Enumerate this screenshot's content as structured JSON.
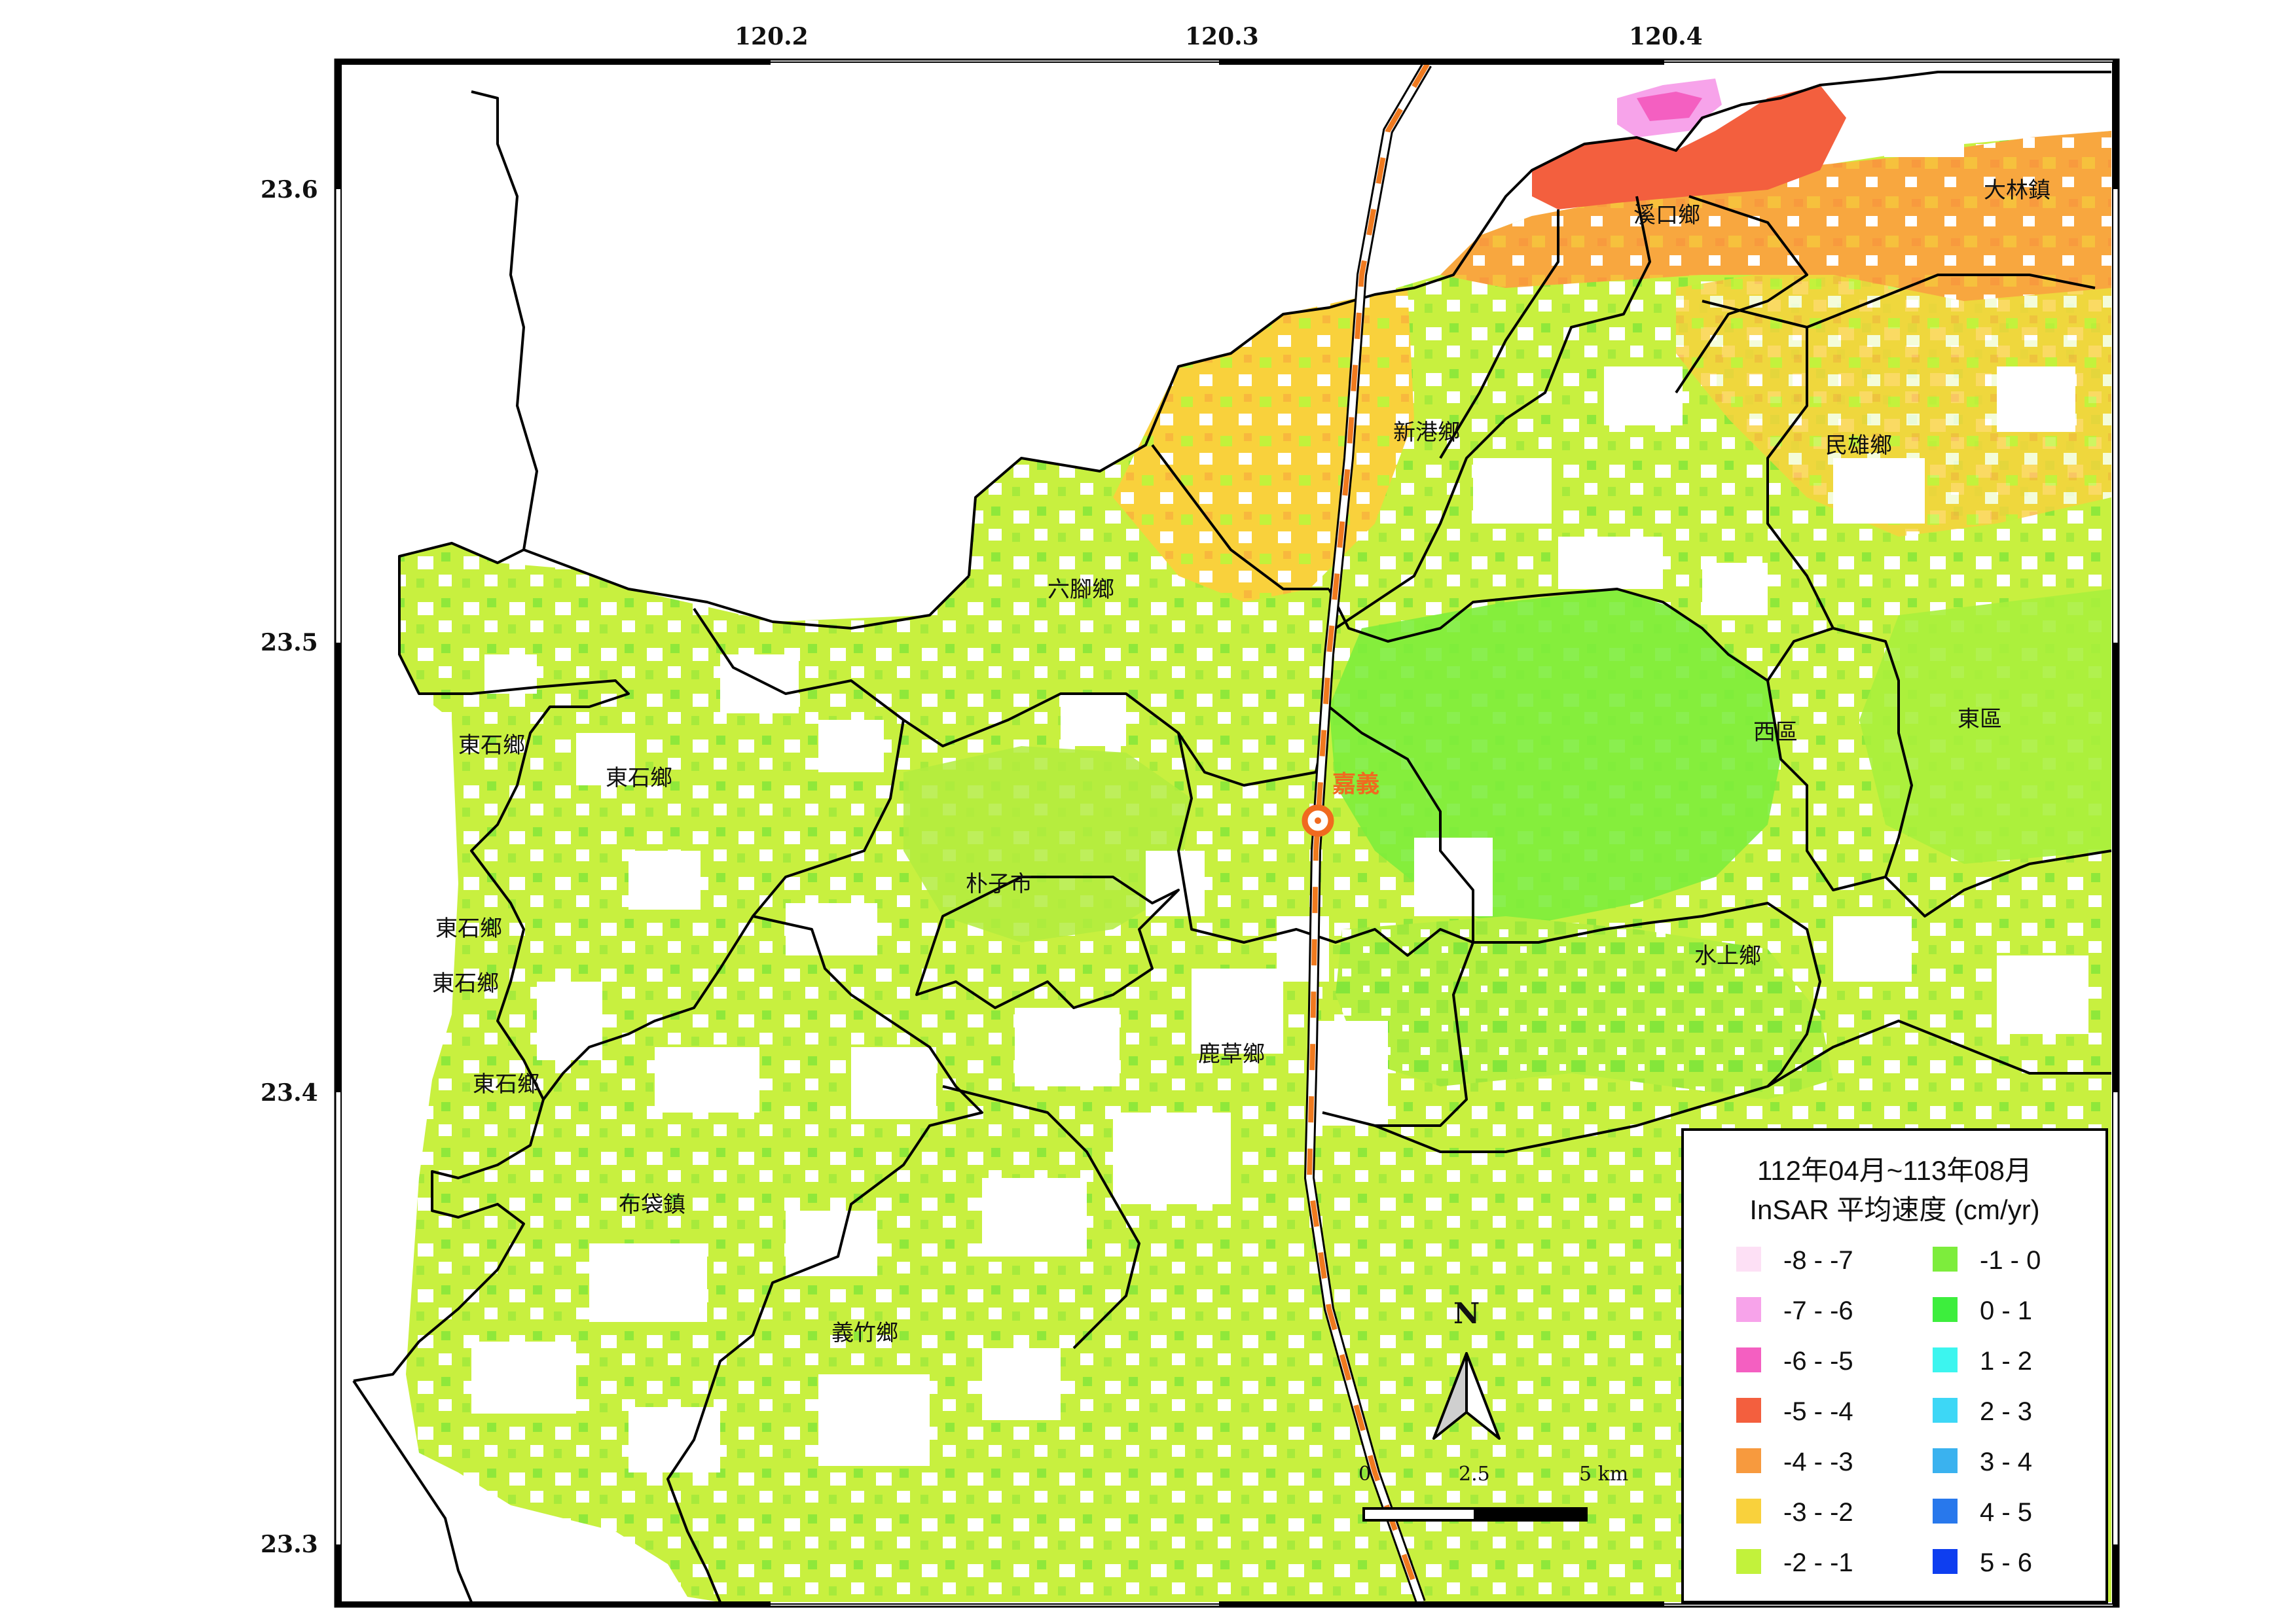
{
  "lon_ticks": [
    "120.2",
    "120.3",
    "120.4"
  ],
  "lat_ticks": [
    "23.6",
    "23.5",
    "23.4",
    "23.3"
  ],
  "towns": [
    {
      "id": "xikou",
      "label": "溪口鄉"
    },
    {
      "id": "dalin",
      "label": "大林鎮"
    },
    {
      "id": "xingang",
      "label": "新港鄉"
    },
    {
      "id": "minxiong",
      "label": "民雄鄉"
    },
    {
      "id": "liujiao",
      "label": "六腳鄉"
    },
    {
      "id": "dongshi-1",
      "label": "東石鄉"
    },
    {
      "id": "dongshi-2",
      "label": "東石鄉"
    },
    {
      "id": "dongshi-3",
      "label": "東石鄉"
    },
    {
      "id": "dongshi-4",
      "label": "東石鄉"
    },
    {
      "id": "dongshi-5",
      "label": "東石鄉"
    },
    {
      "id": "puzi",
      "label": "朴子市"
    },
    {
      "id": "west",
      "label": "西區"
    },
    {
      "id": "east",
      "label": "東區"
    },
    {
      "id": "shuishang",
      "label": "水上鄉"
    },
    {
      "id": "lucao",
      "label": "鹿草鄉"
    },
    {
      "id": "budai",
      "label": "布袋鎮"
    },
    {
      "id": "yizhu",
      "label": "義竹鄉"
    }
  ],
  "city_marker": {
    "label": "嘉義",
    "color": "#f06a1f"
  },
  "scale_bar": {
    "labels": [
      "0",
      "2.5",
      "5 km"
    ]
  },
  "north_arrow": {
    "label": "N"
  },
  "legend": {
    "title_line1": "112年04月~113年08月",
    "title_line2": "InSAR 平均速度 (cm/yr)",
    "left_col": [
      {
        "label": "-8 - -7",
        "color": "#fde0f5"
      },
      {
        "label": "-7 - -6",
        "color": "#f7a3ea"
      },
      {
        "label": "-6 - -5",
        "color": "#f45fc1"
      },
      {
        "label": "-5 - -4",
        "color": "#f35f3e"
      },
      {
        "label": "-4 - -3",
        "color": "#f79a3e"
      },
      {
        "label": "-3 - -2",
        "color": "#f9d13c"
      },
      {
        "label": "-2 - -1",
        "color": "#c2f23b"
      }
    ],
    "right_col": [
      {
        "label": "-1 - 0",
        "color": "#7ded3c"
      },
      {
        "label": "0 - 1",
        "color": "#3dee3d"
      },
      {
        "label": "1 - 2",
        "color": "#3cf5ef"
      },
      {
        "label": "2 - 3",
        "color": "#3dd7f6"
      },
      {
        "label": "3 - 4",
        "color": "#3ab2ef"
      },
      {
        "label": "4 - 5",
        "color": "#2878ec"
      },
      {
        "label": "5 - 6",
        "color": "#0e3ef0"
      }
    ]
  },
  "colors": {
    "railway": "#f07a1f",
    "boundary": "#000000",
    "frame": "#000000"
  }
}
